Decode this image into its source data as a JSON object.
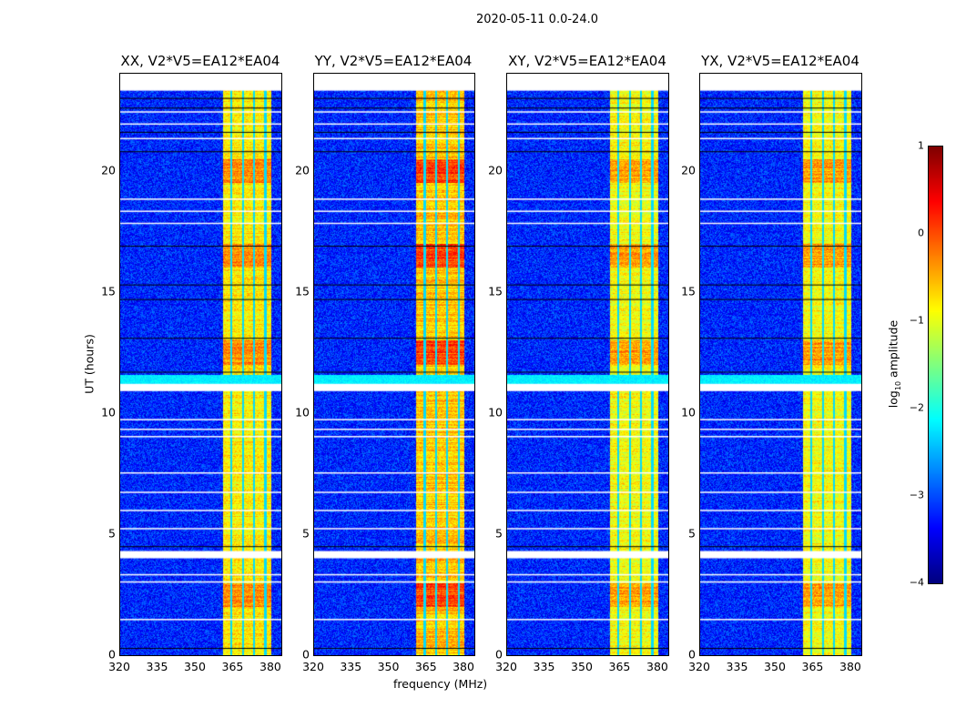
{
  "chart_data": {
    "type": "heatmap",
    "title": "2020-05-11 0.0-24.0",
    "xlabel": "frequency (MHz)",
    "ylabel": "UT (hours)",
    "xlim": [
      320,
      384
    ],
    "ylim": [
      0,
      24
    ],
    "xticks": [
      "320",
      "335",
      "350",
      "365",
      "380"
    ],
    "xtick_values": [
      320,
      335,
      350,
      365,
      380
    ],
    "yticks": [
      "0",
      "5",
      "10",
      "15",
      "20"
    ],
    "ytick_values": [
      0,
      5,
      10,
      15,
      20
    ],
    "panels": [
      {
        "title": "XX, V2*V5=EA12*EA04",
        "band_level": -0.8
      },
      {
        "title": "YY, V2*V5=EA12*EA04",
        "band_level": -0.6
      },
      {
        "title": "XY, V2*V5=EA12*EA04",
        "band_level": -0.9
      },
      {
        "title": "YX, V2*V5=EA12*EA04",
        "band_level": -0.9
      }
    ],
    "colorbar": {
      "label_prefix": "log",
      "label_sub": "10",
      "label_suffix": " amplitude",
      "range": [
        -4,
        1
      ],
      "ticks": [
        "1",
        "0",
        "−1",
        "−2",
        "−3",
        "−4"
      ],
      "tick_values": [
        1,
        0,
        -1,
        -2,
        -3,
        -4
      ],
      "colormap": "jet"
    },
    "features": {
      "background_level": -3.2,
      "rfi_band_mhz": [
        360.5,
        380
      ],
      "subband_edges_mhz": [
        364,
        368.5,
        373,
        377.5
      ],
      "flagged_hours": [
        [
          23.3,
          24
        ],
        [
          10.9,
          11.2
        ],
        [
          4.0,
          4.3
        ],
        [
          1.45,
          1.5
        ],
        [
          3.0,
          3.05
        ],
        [
          3.3,
          3.35
        ],
        [
          5.2,
          5.25
        ],
        [
          5.95,
          6.0
        ],
        [
          6.7,
          6.75
        ],
        [
          7.5,
          7.55
        ],
        [
          9.0,
          9.05
        ],
        [
          9.3,
          9.35
        ],
        [
          9.7,
          9.75
        ],
        [
          17.8,
          17.85
        ],
        [
          18.3,
          18.35
        ],
        [
          18.8,
          18.85
        ],
        [
          21.3,
          21.35
        ],
        [
          21.9,
          21.95
        ],
        [
          22.4,
          22.45
        ]
      ],
      "black_hours": [
        0.3,
        4.5,
        11.7,
        13.1,
        14.7,
        15.3,
        16.9,
        20.8,
        21.6,
        22.6,
        23.0
      ]
    }
  }
}
